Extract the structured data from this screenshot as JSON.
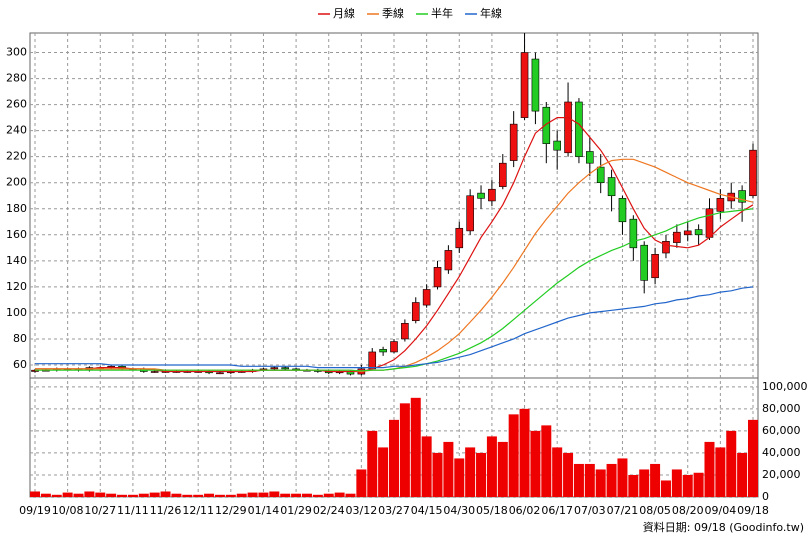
{
  "chart_data": {
    "type": "candlestick",
    "legend": "top",
    "grid": true,
    "categories": [
      "09/19",
      null,
      null,
      "10/08",
      null,
      null,
      "10/27",
      null,
      null,
      "11/11",
      null,
      null,
      "11/26",
      null,
      null,
      "12/11",
      null,
      null,
      "12/29",
      null,
      null,
      "01/14",
      null,
      null,
      "01/29",
      null,
      null,
      "02/24",
      null,
      null,
      "03/12",
      null,
      null,
      "03/27",
      null,
      null,
      "04/15",
      null,
      null,
      "04/30",
      null,
      null,
      "05/18",
      null,
      null,
      "06/02",
      null,
      null,
      "06/17",
      null,
      null,
      "07/03",
      null,
      null,
      "07/21",
      null,
      null,
      "08/05",
      null,
      null,
      "08/20",
      null,
      null,
      "09/04",
      null,
      null,
      "09/18"
    ],
    "up_color": "#ee1111",
    "down_color": "#22cc22",
    "open": [
      55,
      56,
      56,
      57,
      57,
      56,
      58,
      58,
      59,
      57,
      57,
      55,
      55,
      55,
      55,
      55,
      55,
      54,
      54,
      55,
      55,
      56,
      57,
      58,
      57,
      56,
      56,
      55,
      54,
      55,
      53,
      57,
      72,
      70,
      80,
      94,
      106,
      120,
      133,
      150,
      163,
      192,
      186,
      197,
      217,
      250,
      295,
      258,
      232,
      223,
      262,
      224,
      212,
      204,
      188,
      172,
      152,
      127,
      146,
      154,
      160,
      164,
      158,
      178,
      186,
      194,
      190
    ],
    "high": [
      57,
      57,
      58,
      58,
      58,
      59,
      59,
      60,
      60,
      58,
      58,
      56,
      56,
      56,
      56,
      56,
      56,
      55,
      56,
      56,
      57,
      58,
      59,
      59,
      58,
      57,
      57,
      56,
      56,
      56,
      60,
      73,
      74,
      80,
      95,
      112,
      122,
      140,
      152,
      170,
      195,
      198,
      202,
      222,
      255,
      315,
      300,
      262,
      240,
      277,
      265,
      235,
      222,
      210,
      190,
      175,
      155,
      150,
      160,
      168,
      170,
      168,
      188,
      195,
      200,
      198,
      230
    ],
    "low": [
      54,
      55,
      55,
      56,
      55,
      55,
      57,
      57,
      56,
      56,
      54,
      54,
      54,
      54,
      54,
      54,
      53,
      53,
      53,
      54,
      54,
      55,
      56,
      56,
      55,
      55,
      54,
      53,
      53,
      52,
      52,
      57,
      67,
      69,
      78,
      92,
      104,
      118,
      130,
      146,
      160,
      180,
      182,
      195,
      212,
      248,
      245,
      215,
      210,
      220,
      215,
      205,
      192,
      178,
      160,
      140,
      115,
      122,
      142,
      150,
      155,
      152,
      156,
      172,
      180,
      170,
      188
    ],
    "close": [
      56,
      56,
      57,
      57,
      56,
      58,
      58,
      59,
      57,
      57,
      55,
      55,
      55,
      55,
      55,
      55,
      54,
      54,
      55,
      55,
      56,
      57,
      58,
      57,
      56,
      56,
      55,
      54,
      55,
      53,
      57,
      70,
      70,
      78,
      92,
      108,
      118,
      135,
      148,
      165,
      190,
      188,
      195,
      215,
      245,
      300,
      255,
      230,
      225,
      262,
      220,
      215,
      200,
      190,
      170,
      150,
      125,
      145,
      155,
      162,
      163,
      160,
      180,
      188,
      192,
      185,
      225
    ],
    "series": [
      {
        "name": "月線",
        "color": "#dd1111",
        "values": [
          57,
          57,
          57,
          57,
          57,
          57,
          58,
          58,
          58,
          57,
          57,
          56,
          55,
          55,
          55,
          55,
          55,
          55,
          55,
          55,
          55,
          56,
          56,
          56,
          56,
          56,
          56,
          55,
          55,
          55,
          55,
          57,
          60,
          64,
          71,
          80,
          90,
          102,
          115,
          128,
          143,
          158,
          170,
          183,
          200,
          220,
          238,
          245,
          250,
          250,
          245,
          235,
          225,
          212,
          196,
          180,
          165,
          156,
          152,
          151,
          150,
          152,
          158,
          166,
          172,
          178,
          183
        ]
      },
      {
        "name": "季線",
        "color": "#ee7722",
        "values": [
          57,
          57,
          57,
          57,
          57,
          57,
          57,
          57,
          57,
          57,
          57,
          57,
          56,
          56,
          56,
          56,
          56,
          56,
          56,
          56,
          56,
          56,
          56,
          56,
          56,
          56,
          56,
          56,
          56,
          56,
          55,
          56,
          56,
          57,
          59,
          62,
          66,
          71,
          77,
          84,
          93,
          102,
          112,
          123,
          135,
          148,
          161,
          172,
          182,
          192,
          200,
          207,
          213,
          217,
          218,
          218,
          215,
          212,
          208,
          204,
          200,
          197,
          194,
          191,
          189,
          187,
          185
        ]
      },
      {
        "name": "半年",
        "color": "#22cc22",
        "values": [
          56,
          56,
          56,
          56,
          56,
          56,
          56,
          56,
          56,
          56,
          56,
          56,
          56,
          56,
          56,
          56,
          56,
          56,
          56,
          56,
          56,
          56,
          56,
          56,
          56,
          56,
          56,
          56,
          56,
          56,
          55.5,
          56,
          56,
          57,
          58,
          59,
          61,
          63,
          66,
          69,
          73,
          77,
          82,
          88,
          95,
          102,
          109,
          116,
          123,
          129,
          135,
          140,
          144,
          148,
          151,
          155,
          157,
          160,
          163,
          167,
          170,
          173,
          175,
          177,
          178,
          179,
          180
        ]
      },
      {
        "name": "年線",
        "color": "#2266cc",
        "values": [
          61,
          61,
          61,
          61,
          61,
          61,
          61,
          60,
          60,
          60,
          60,
          60,
          60,
          60,
          60,
          60,
          60,
          60,
          60,
          59,
          59,
          59,
          59,
          59,
          59,
          59,
          58,
          58,
          58,
          58,
          58,
          58,
          58,
          59,
          59,
          60,
          61,
          62,
          64,
          66,
          68,
          71,
          74,
          77,
          80,
          84,
          87,
          90,
          93,
          96,
          98,
          100,
          101,
          102,
          103,
          104,
          105,
          107,
          108,
          110,
          111,
          113,
          114,
          116,
          117,
          119,
          120
        ]
      }
    ],
    "ylim": [
      50,
      315
    ],
    "yticks": [
      60,
      80,
      100,
      120,
      140,
      160,
      180,
      200,
      220,
      240,
      260,
      280,
      300
    ],
    "volume": {
      "color": "#ee0000",
      "ylim": [
        0,
        108000
      ],
      "yticks": [
        {
          "value": 0,
          "label": "0"
        },
        {
          "value": 20000,
          "label": "20,000"
        },
        {
          "value": 40000,
          "label": "40,000"
        },
        {
          "value": 60000,
          "label": "60,000"
        },
        {
          "value": 80000,
          "label": "80,000"
        },
        {
          "value": 100000,
          "label": "100,000"
        }
      ],
      "values": [
        5000,
        3000,
        2000,
        4000,
        3000,
        5000,
        4000,
        3000,
        2000,
        2000,
        3000,
        4000,
        5000,
        3000,
        2000,
        2000,
        3000,
        2000,
        2000,
        3000,
        4000,
        4000,
        5000,
        3000,
        3000,
        3000,
        2000,
        3000,
        4000,
        3000,
        25000,
        60000,
        45000,
        70000,
        85000,
        90000,
        55000,
        40000,
        50000,
        35000,
        45000,
        40000,
        55000,
        50000,
        75000,
        80000,
        60000,
        65000,
        45000,
        40000,
        30000,
        30000,
        25000,
        30000,
        35000,
        20000,
        25000,
        30000,
        15000,
        25000,
        20000,
        22000,
        50000,
        45000,
        60000,
        40000,
        70000
      ]
    },
    "source": "資料日期: 09/18 (Goodinfo.tw)"
  }
}
